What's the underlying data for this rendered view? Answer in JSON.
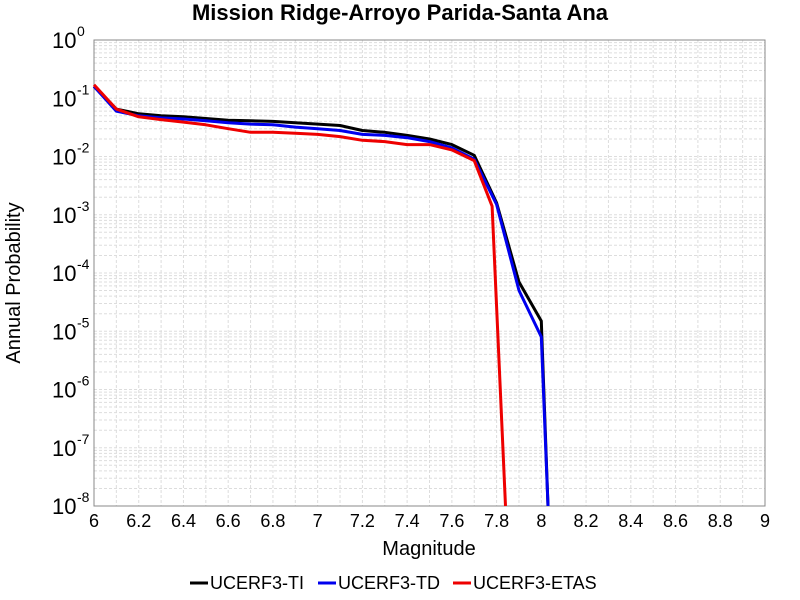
{
  "chart_data": {
    "type": "line",
    "title": "Mission Ridge-Arroyo Parida-Santa Ana",
    "xlabel": "Magnitude",
    "ylabel": "Annual Probability",
    "xlim": [
      6,
      9
    ],
    "ylim": [
      1e-08,
      1
    ],
    "yscale": "log",
    "grid": true,
    "legend_position": "bottom",
    "x_ticks": [
      "6",
      "6.2",
      "6.4",
      "6.6",
      "6.8",
      "7",
      "7.2",
      "7.4",
      "7.6",
      "7.8",
      "8",
      "8.2",
      "8.4",
      "8.6",
      "8.8",
      "9"
    ],
    "y_ticks": [
      {
        "base": "10",
        "exp": "0"
      },
      {
        "base": "10",
        "exp": "-1"
      },
      {
        "base": "10",
        "exp": "-2"
      },
      {
        "base": "10",
        "exp": "-3"
      },
      {
        "base": "10",
        "exp": "-4"
      },
      {
        "base": "10",
        "exp": "-5"
      },
      {
        "base": "10",
        "exp": "-6"
      },
      {
        "base": "10",
        "exp": "-7"
      },
      {
        "base": "10",
        "exp": "-8"
      }
    ],
    "series": [
      {
        "name": "UCERF3-TI",
        "color": "#000000",
        "x": [
          6.0,
          6.1,
          6.2,
          6.3,
          6.4,
          6.5,
          6.6,
          6.7,
          6.8,
          6.9,
          7.0,
          7.1,
          7.2,
          7.3,
          7.4,
          7.5,
          7.6,
          7.7,
          7.8,
          7.9,
          8.0,
          8.03
        ],
        "y": [
          0.16,
          0.065,
          0.054,
          0.05,
          0.048,
          0.045,
          0.042,
          0.041,
          0.04,
          0.038,
          0.036,
          0.034,
          0.028,
          0.026,
          0.023,
          0.02,
          0.016,
          0.0105,
          0.0016,
          7e-05,
          1.5e-05,
          1e-08
        ]
      },
      {
        "name": "UCERF3-TD",
        "color": "#0000ee",
        "x": [
          6.0,
          6.1,
          6.2,
          6.3,
          6.4,
          6.5,
          6.6,
          6.7,
          6.8,
          6.9,
          7.0,
          7.1,
          7.2,
          7.3,
          7.4,
          7.5,
          7.6,
          7.7,
          7.8,
          7.9,
          8.0,
          8.03
        ],
        "y": [
          0.16,
          0.06,
          0.05,
          0.046,
          0.044,
          0.041,
          0.038,
          0.036,
          0.035,
          0.032,
          0.03,
          0.028,
          0.024,
          0.023,
          0.021,
          0.018,
          0.014,
          0.009,
          0.0015,
          5e-05,
          8e-06,
          1e-08
        ]
      },
      {
        "name": "UCERF3-ETAS",
        "color": "#ee0000",
        "x": [
          6.0,
          6.1,
          6.2,
          6.3,
          6.4,
          6.5,
          6.6,
          6.7,
          6.8,
          6.9,
          7.0,
          7.1,
          7.2,
          7.3,
          7.4,
          7.5,
          7.6,
          7.7,
          7.78,
          7.84
        ],
        "y": [
          0.17,
          0.065,
          0.048,
          0.043,
          0.039,
          0.035,
          0.03,
          0.026,
          0.026,
          0.025,
          0.024,
          0.022,
          0.019,
          0.018,
          0.016,
          0.016,
          0.013,
          0.0085,
          0.0014,
          1e-08
        ]
      }
    ]
  }
}
